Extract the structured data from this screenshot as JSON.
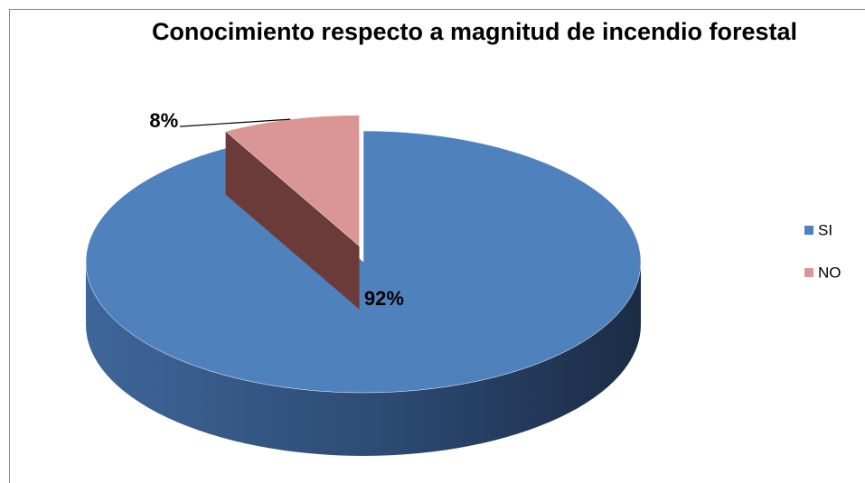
{
  "chart_data": {
    "type": "pie",
    "title": "Conocimiento respecto a magnitud de incendio forestal",
    "categories": [
      "SI",
      "NO"
    ],
    "values": [
      92,
      8
    ],
    "value_labels": [
      "92%",
      "8%"
    ],
    "colors": [
      "#4f81bd",
      "#d99694"
    ],
    "legend": "right"
  }
}
